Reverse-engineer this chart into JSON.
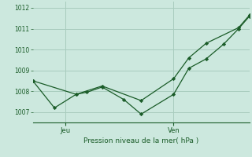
{
  "bg_color": "#cce8de",
  "grid_color": "#a8ccbe",
  "line_color": "#1a5c28",
  "ylabel": "Pression niveau de la mer( hPa )",
  "ylim": [
    1006.5,
    1012.3
  ],
  "xlim": [
    0,
    10
  ],
  "yticks": [
    1007,
    1008,
    1009,
    1010,
    1011,
    1012
  ],
  "xtick_jeu_pos": 1.5,
  "xtick_ven_pos": 6.5,
  "series1_x": [
    0,
    1.0,
    2.0,
    2.5,
    3.2,
    4.2,
    5.0,
    6.5,
    7.2,
    8.0,
    8.8,
    9.5,
    10.0
  ],
  "series1_y": [
    1008.5,
    1007.2,
    1007.85,
    1007.95,
    1008.2,
    1007.6,
    1006.9,
    1007.85,
    1009.1,
    1009.55,
    1010.25,
    1011.0,
    1011.6
  ],
  "series2_x": [
    0,
    2.0,
    3.2,
    5.0,
    6.5,
    7.2,
    8.0,
    9.5,
    10.0
  ],
  "series2_y": [
    1008.5,
    1007.85,
    1008.25,
    1007.55,
    1008.6,
    1009.6,
    1010.3,
    1011.05,
    1011.65
  ]
}
